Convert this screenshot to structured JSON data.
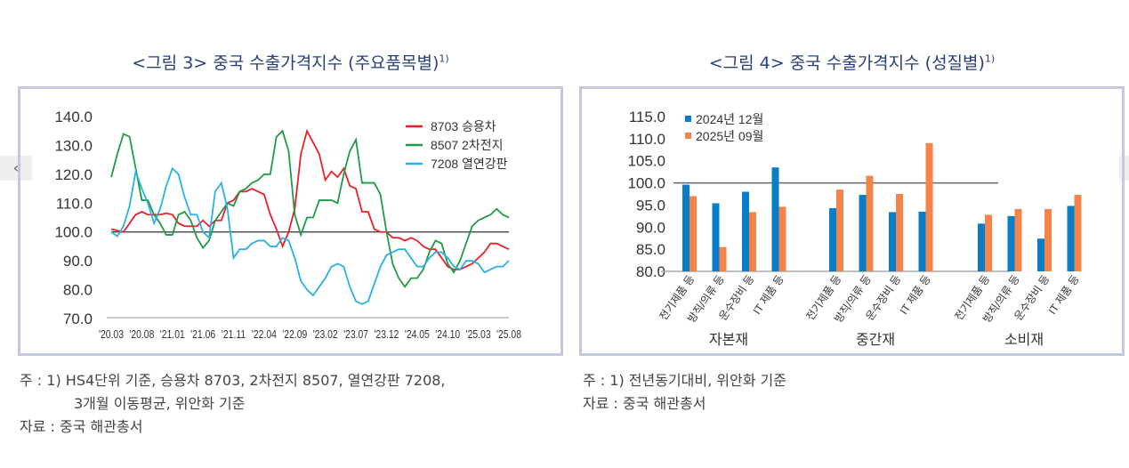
{
  "nav": {
    "prev_label": "‹"
  },
  "chart_data": [
    {
      "type": "line",
      "title": "<그림 3> 중국 수출가격지수 (주요품목별)",
      "title_sup": "1)",
      "ylim": [
        70,
        140
      ],
      "yticks": [
        "140.0",
        "130.0",
        "120.0",
        "110.0",
        "100.0",
        "90.0",
        "80.0",
        "70.0"
      ],
      "reference_line": 100,
      "xtick_labels": [
        "'20.03",
        "'20.08",
        "'21.01",
        "'21.06",
        "'21.11",
        "'22.04",
        "'22.09",
        "'23.02",
        "'23.07",
        "'23.12",
        "'24.05",
        "'24.10",
        "'25.03",
        "'25.08"
      ],
      "x_start": "2020.03",
      "x_end": "2025.08",
      "legend_position": "top-right",
      "series": [
        {
          "name": "8703 승용차",
          "color": "#e8202a",
          "values": [
            101,
            100.5,
            100,
            103,
            106,
            107,
            106,
            106,
            106,
            106.5,
            106,
            103,
            102,
            102,
            102,
            104,
            102,
            104,
            104,
            110,
            111,
            114,
            114,
            115,
            114,
            113,
            106,
            101,
            95,
            100,
            108,
            127,
            135,
            131,
            127,
            118,
            121,
            119,
            122,
            116,
            115,
            107,
            107,
            101,
            100,
            100,
            98,
            98,
            97,
            98,
            97,
            95,
            94,
            94,
            91,
            88,
            87,
            87,
            88,
            89,
            91,
            93,
            96,
            96,
            95,
            94
          ]
        },
        {
          "name": "8507 2차전지",
          "color": "#1f9a45",
          "values": [
            119,
            127,
            134,
            133,
            122,
            111,
            111,
            106,
            103,
            99,
            99,
            106,
            107,
            104,
            98,
            94.5,
            97,
            104,
            107,
            110,
            109,
            114,
            115,
            117,
            118,
            120,
            120,
            133,
            135,
            128,
            106,
            99,
            105,
            105,
            111,
            111,
            111,
            110,
            120,
            128,
            132,
            117,
            117,
            117,
            113,
            100,
            89,
            84,
            81,
            84,
            84,
            87,
            93,
            97,
            96,
            89,
            86,
            90,
            96,
            102,
            104,
            105,
            106,
            108,
            106,
            105
          ]
        },
        {
          "name": "7208 열연강판",
          "color": "#27b1e6",
          "values": [
            100,
            98.5,
            102,
            109,
            121,
            115,
            110,
            103,
            108,
            116,
            122,
            120,
            112,
            106,
            106,
            100,
            98,
            114,
            117,
            108,
            91,
            94,
            94,
            96,
            97,
            97,
            95,
            95,
            98,
            97,
            91,
            83,
            80,
            78,
            81,
            84,
            88,
            89,
            88,
            81,
            76,
            75,
            76,
            82,
            88,
            92,
            93,
            94,
            94,
            91,
            88,
            88,
            91,
            93,
            93,
            91,
            88,
            87,
            90,
            90,
            89,
            86,
            87,
            88,
            88,
            90
          ]
        }
      ],
      "notes": [
        "주 : 1) HS4단위 기준, 승용차 8703, 2차전지 8507, 열연강판 7208,",
        "3개월 이동평균, 위안화 기준",
        "자료 : 중국 해관총서"
      ]
    },
    {
      "type": "bar",
      "title": "<그림 4> 중국 수출가격지수 (성질별)",
      "title_sup": "1)",
      "ylim": [
        80,
        115
      ],
      "yticks": [
        "115.0",
        "110.0",
        "105.0",
        "100.0",
        "95.0",
        "90.0",
        "85.0",
        "80.0"
      ],
      "reference_line": 100,
      "legend_position": "top-left",
      "groups": [
        "자본재",
        "중간재",
        "소비재"
      ],
      "categories": [
        "전기제품 등",
        "방직/의류 등",
        "운수장비 등",
        "IT 제품 등"
      ],
      "series": [
        {
          "name": "2024년 12월",
          "color": "#0a7dc9",
          "values": [
            [
              99.6,
              95.4,
              98.0,
              103.5
            ],
            [
              94.3,
              97.3,
              93.4,
              93.5
            ],
            [
              90.8,
              92.5,
              87.4,
              94.8
            ]
          ]
        },
        {
          "name": "2025년 09월",
          "color": "#f4844a",
          "values": [
            [
              97.0,
              85.5,
              93.4,
              94.6
            ],
            [
              98.5,
              101.6,
              97.5,
              109.0
            ],
            [
              92.8,
              94.1,
              94.1,
              97.3
            ]
          ]
        }
      ],
      "notes": [
        "주 : 1) 전년동기대비, 위안화 기준",
        "자료 : 중국 해관총서"
      ]
    }
  ]
}
